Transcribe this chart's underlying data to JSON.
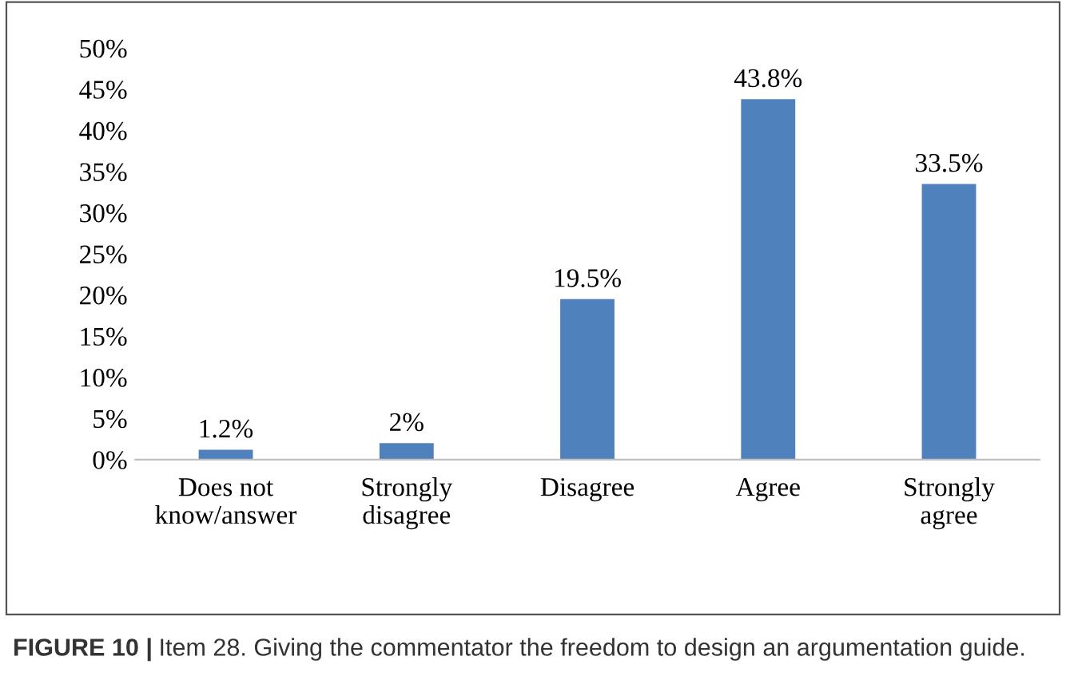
{
  "chart_data": {
    "type": "bar",
    "categories": [
      "Does not\nknow/answer",
      "Strongly\ndisagree",
      "Disagree",
      "Agree",
      "Strongly\nagree"
    ],
    "values": [
      1.2,
      2,
      19.5,
      43.8,
      33.5
    ],
    "value_labels": [
      "1.2%",
      "2%",
      "19.5%",
      "43.8%",
      "33.5%"
    ],
    "color": "#4f81bd",
    "ylim": [
      0,
      50
    ],
    "yticks": [
      {
        "value": 0,
        "label": "0%"
      },
      {
        "value": 5,
        "label": "5%"
      },
      {
        "value": 10,
        "label": "10%"
      },
      {
        "value": 15,
        "label": "15%"
      },
      {
        "value": 20,
        "label": "20%"
      },
      {
        "value": 25,
        "label": "25%"
      },
      {
        "value": 30,
        "label": "30%"
      },
      {
        "value": 35,
        "label": "35%"
      },
      {
        "value": 40,
        "label": "40%"
      },
      {
        "value": 45,
        "label": "45%"
      },
      {
        "value": 50,
        "label": "50%"
      }
    ],
    "grid": false,
    "annotations": [
      "FIGURE 10 |",
      "Item 28. Giving the commentator the freedom to design an argumentation guide."
    ]
  }
}
